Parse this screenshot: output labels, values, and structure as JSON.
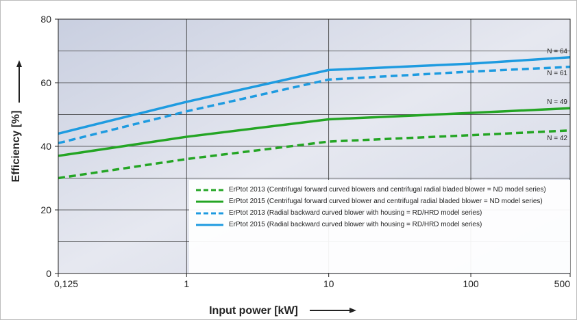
{
  "chart_data": {
    "type": "line",
    "xlabel": "Input power [kW]",
    "ylabel": "Efficiency [%]",
    "x": [
      0.125,
      1,
      10,
      100,
      500
    ],
    "xscale": "log",
    "xlim": [
      0.125,
      500
    ],
    "xticks": [
      {
        "value": 0.125,
        "label": "0,125"
      },
      1,
      10,
      100,
      500
    ],
    "ylim": [
      0,
      80
    ],
    "yticks": [
      0,
      20,
      40,
      60,
      80
    ],
    "y_minor_ticks": [
      10,
      30,
      50,
      70
    ],
    "grid": true,
    "legend": "lower right",
    "series": [
      {
        "name": "ErPtot 2013 (Centrifugal forward curved blowers and centrifugal radial bladed blower = ND model series)",
        "color": "#24a524",
        "dashed": true,
        "values": [
          30,
          36,
          41.5,
          43.5,
          45
        ],
        "end_label": "N = 42"
      },
      {
        "name": "ErPtot 2015 (Centrifugal forward curved blower and centrifugal radial bladed blower = ND model series)",
        "color": "#24a524",
        "dashed": false,
        "values": [
          37,
          43,
          48.5,
          50.5,
          52
        ],
        "end_label": "N = 49"
      },
      {
        "name": "ErPtot 2013 (Radial backward curved blower with housing = RD/HRD model series)",
        "color": "#1e9be0",
        "dashed": true,
        "values": [
          41,
          51,
          61,
          63.5,
          65
        ],
        "end_label": "N = 61"
      },
      {
        "name": "ErPtot 2015 (Radial backward curved blower with housing = RD/HRD model series)",
        "color": "#1e9be0",
        "dashed": false,
        "values": [
          44,
          54,
          64,
          66,
          68
        ],
        "end_label": "N = 64"
      }
    ]
  }
}
